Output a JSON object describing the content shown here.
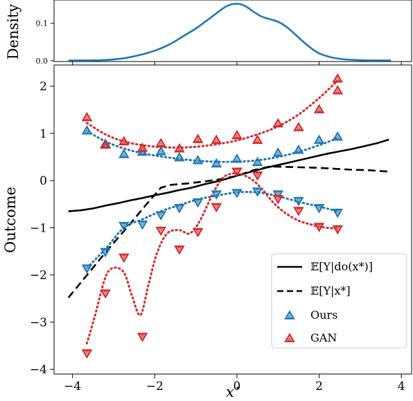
{
  "chart_data": [
    {
      "type": "line",
      "ylabel": "Density",
      "xlim": [
        -4.45,
        4.25
      ],
      "ylim": [
        -0.002,
        0.162
      ],
      "yticks": [
        0.0,
        0.1
      ],
      "ytick_labels": [
        "0.0",
        "0.1"
      ],
      "xticks": [
        -4,
        -2,
        0,
        2,
        4
      ],
      "grid": false,
      "series": [
        {
          "color": "#1f77b4",
          "x": [
            -4.1,
            -3.6,
            -3.2,
            -2.8,
            -2.5,
            -2.2,
            -1.9,
            -1.6,
            -1.3,
            -1.0,
            -0.8,
            -0.6,
            -0.4,
            -0.2,
            0.0,
            0.2,
            0.4,
            0.6,
            0.8,
            1.0,
            1.2,
            1.4,
            1.6,
            1.8,
            2.0,
            2.3,
            2.6,
            2.9,
            3.2,
            3.6,
            3.75
          ],
          "y": [
            0.001,
            0.001,
            0.002,
            0.006,
            0.012,
            0.02,
            0.031,
            0.046,
            0.066,
            0.086,
            0.102,
            0.118,
            0.135,
            0.148,
            0.152,
            0.146,
            0.131,
            0.118,
            0.111,
            0.104,
            0.091,
            0.072,
            0.052,
            0.034,
            0.02,
            0.009,
            0.004,
            0.002,
            0.001,
            0.001,
            0.001
          ]
        }
      ]
    },
    {
      "type": "line",
      "xlabel": "x*",
      "ylabel": "Outcome",
      "xlim": [
        -4.45,
        4.25
      ],
      "ylim": [
        -4.1,
        2.45
      ],
      "xticks": [
        -4,
        -2,
        0,
        2,
        4
      ],
      "xtick_labels": [
        "−4",
        "−2",
        "0",
        "2",
        "4"
      ],
      "yticks": [
        -4,
        -3,
        -2,
        -1,
        0,
        1,
        2
      ],
      "ytick_labels": [
        "−4",
        "−3",
        "−2",
        "−1",
        "0",
        "1",
        "2"
      ],
      "grid": false,
      "legend_position": "bottom-right",
      "legend": {
        "causal_label": "𝔼[Y|do(x*)]",
        "conditional_label": "𝔼[Y|x*]",
        "ours_label": "Ours",
        "gan_label": "GAN"
      },
      "series": [
        {
          "key": "causal",
          "style": "solid",
          "color": "#000000",
          "x": [
            -4.1,
            -3.8,
            -3.5,
            -3.2,
            -2.9,
            -2.6,
            -2.3,
            -2.0,
            -1.7,
            -1.4,
            -1.1,
            -0.8,
            -0.5,
            -0.2,
            0.1,
            0.4,
            0.7,
            1.0,
            1.3,
            1.6,
            1.9,
            2.2,
            2.5,
            2.8,
            3.1,
            3.4,
            3.7
          ],
          "y": [
            -0.65,
            -0.63,
            -0.59,
            -0.53,
            -0.48,
            -0.42,
            -0.37,
            -0.31,
            -0.26,
            -0.2,
            -0.15,
            -0.08,
            -0.02,
            0.05,
            0.13,
            0.2,
            0.27,
            0.33,
            0.39,
            0.45,
            0.51,
            0.57,
            0.62,
            0.67,
            0.73,
            0.79,
            0.87
          ]
        },
        {
          "key": "conditional",
          "style": "dashed",
          "color": "#000000",
          "x": [
            -4.1,
            -3.6,
            -3.1,
            -2.6,
            -2.2,
            -1.85,
            -1.6,
            -1.2,
            -0.8,
            -0.4,
            0.0,
            0.4,
            0.8,
            1.2,
            1.6,
            2.0,
            2.4,
            2.8,
            3.2,
            3.7
          ],
          "y": [
            -2.48,
            -1.95,
            -1.42,
            -0.92,
            -0.5,
            -0.15,
            -0.09,
            -0.06,
            -0.02,
            0.03,
            0.1,
            0.22,
            0.3,
            0.29,
            0.28,
            0.27,
            0.25,
            0.23,
            0.22,
            0.19
          ]
        },
        {
          "key": "ours_upper_fit",
          "style": "dotted",
          "color": "#1f77b4",
          "x": [
            -3.65,
            -3.2,
            -2.75,
            -2.3,
            -1.85,
            -1.4,
            -0.95,
            -0.5,
            0.0,
            0.5,
            1.0,
            1.5,
            2.0,
            2.45
          ],
          "y": [
            1.05,
            0.83,
            0.68,
            0.58,
            0.51,
            0.46,
            0.42,
            0.4,
            0.4,
            0.43,
            0.5,
            0.61,
            0.75,
            0.9
          ]
        },
        {
          "key": "ours_lower_fit",
          "style": "dotted",
          "color": "#1f77b4",
          "x": [
            -3.65,
            -3.2,
            -2.75,
            -2.3,
            -1.85,
            -1.4,
            -0.95,
            -0.5,
            0.0,
            0.5,
            1.0,
            1.5,
            2.0,
            2.45
          ],
          "y": [
            -1.85,
            -1.45,
            -1.0,
            -0.82,
            -0.65,
            -0.52,
            -0.4,
            -0.32,
            -0.25,
            -0.25,
            -0.33,
            -0.45,
            -0.55,
            -0.65
          ]
        },
        {
          "key": "gan_upper_fit",
          "style": "dotted",
          "color": "#d62728",
          "x": [
            -3.65,
            -3.2,
            -2.75,
            -2.3,
            -1.85,
            -1.4,
            -0.95,
            -0.5,
            0.0,
            0.5,
            1.0,
            1.5,
            2.0,
            2.45
          ],
          "y": [
            1.22,
            0.98,
            0.83,
            0.75,
            0.71,
            0.7,
            0.72,
            0.77,
            0.85,
            0.98,
            1.15,
            1.4,
            1.75,
            2.12
          ]
        },
        {
          "key": "gan_lower_fit",
          "style": "dotted",
          "color": "#d62728",
          "x": [
            -3.65,
            -3.45,
            -3.2,
            -3.0,
            -2.75,
            -2.55,
            -2.35,
            -2.15,
            -1.95,
            -1.7,
            -1.4,
            -1.15,
            -0.9,
            -0.6,
            -0.35,
            -0.1,
            0.15,
            0.4,
            0.65,
            0.9,
            1.2,
            1.5,
            1.8,
            2.1,
            2.45
          ],
          "y": [
            -3.45,
            -2.85,
            -2.05,
            -1.85,
            -1.95,
            -2.45,
            -2.85,
            -2.2,
            -1.55,
            -1.12,
            -1.05,
            -1.12,
            -0.85,
            -0.3,
            0.05,
            0.15,
            0.12,
            0.0,
            -0.22,
            -0.48,
            -0.7,
            -0.85,
            -0.93,
            -0.99,
            -1.02
          ]
        },
        {
          "key": "ours_points",
          "style": "marker-up",
          "color": "#1f77b4",
          "x": [
            -3.65,
            -3.2,
            -2.75,
            -2.3,
            -1.85,
            -1.4,
            -0.95,
            -0.5,
            0.0,
            0.5,
            1.0,
            1.5,
            2.0,
            2.45
          ],
          "y": [
            1.05,
            0.77,
            0.55,
            0.6,
            0.61,
            0.48,
            0.42,
            0.35,
            0.45,
            0.38,
            0.58,
            0.64,
            0.85,
            0.92
          ]
        },
        {
          "key": "ours_points_down",
          "style": "marker-down",
          "color": "#1f77b4",
          "x": [
            -3.65,
            -3.2,
            -2.75,
            -2.3,
            -1.85,
            -1.4,
            -0.95,
            -0.5,
            0.0,
            0.5,
            1.0,
            1.5,
            2.0,
            2.45
          ],
          "y": [
            -1.85,
            -1.5,
            -0.95,
            -0.92,
            -0.72,
            -0.57,
            -0.45,
            -0.28,
            -0.25,
            -0.22,
            -0.28,
            -0.42,
            -0.57,
            -0.67
          ]
        },
        {
          "key": "gan_points",
          "style": "marker-up",
          "color": "#d62728",
          "x": [
            -3.65,
            -3.2,
            -2.75,
            -2.3,
            -1.85,
            -1.4,
            -0.95,
            -0.5,
            0.0,
            0.5,
            1.0,
            1.5,
            2.0,
            2.45
          ],
          "y": [
            1.33,
            0.75,
            0.82,
            0.68,
            0.78,
            0.67,
            0.87,
            0.85,
            0.95,
            0.85,
            1.2,
            1.12,
            1.5,
            1.9
          ]
        },
        {
          "key": "gan_points_top",
          "style": "marker-up",
          "color": "#d62728",
          "x": [
            2.45
          ],
          "y": [
            2.15
          ]
        },
        {
          "key": "gan_points_down",
          "style": "marker-down",
          "color": "#d62728",
          "x": [
            -3.65,
            -3.2,
            -2.75,
            -2.3,
            -1.85,
            -1.4,
            -0.95,
            -0.5,
            0.0,
            0.5,
            1.0,
            1.5,
            2.0,
            2.45
          ],
          "y": [
            -3.65,
            -2.38,
            -1.62,
            -3.3,
            -1.05,
            -1.45,
            -1.08,
            -0.55,
            0.2,
            0.12,
            -0.38,
            -0.63,
            -0.97,
            -1.02
          ]
        }
      ]
    }
  ]
}
